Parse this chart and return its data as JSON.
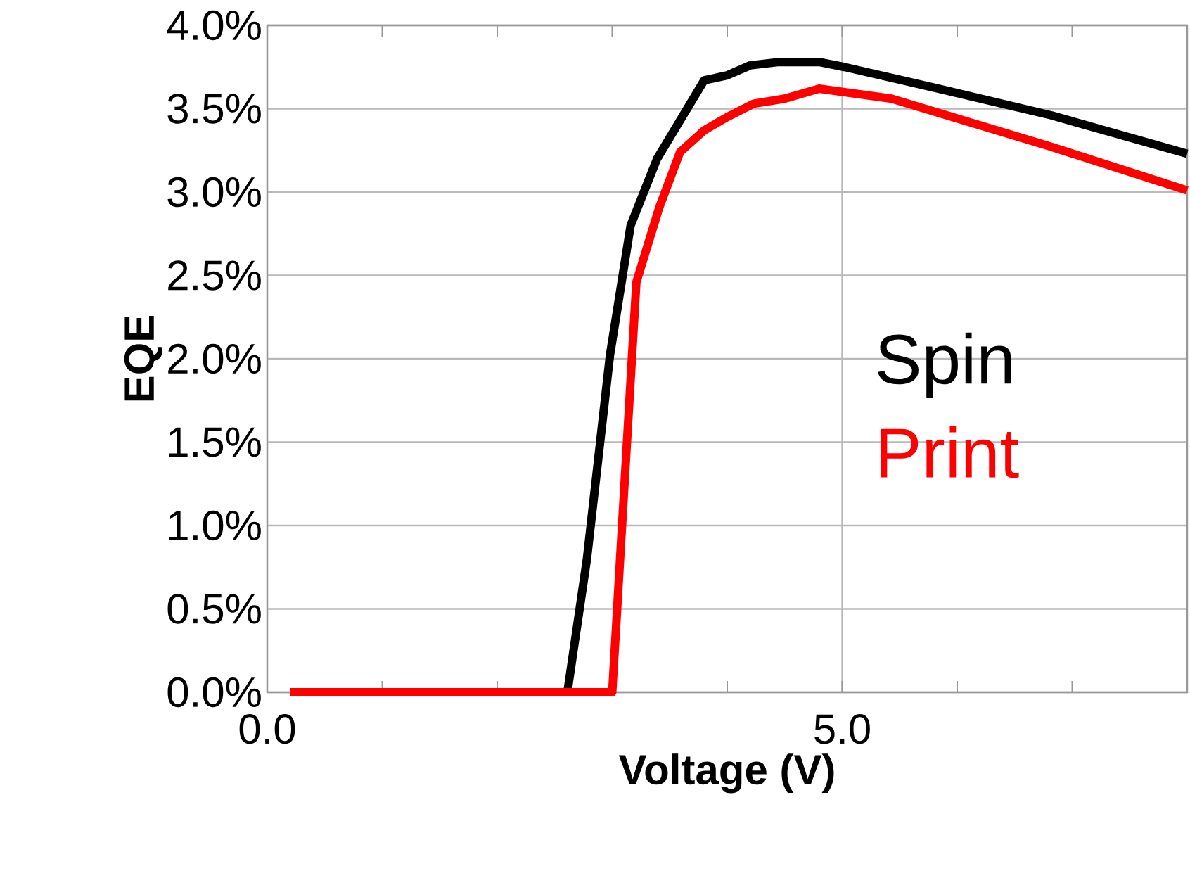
{
  "chart_data": {
    "type": "line",
    "xlabel": "Voltage (V)",
    "ylabel": "EQE",
    "xlim": [
      0,
      8
    ],
    "ylim": [
      0,
      4
    ],
    "xticks": [
      {
        "value": 0,
        "label": "0.0"
      },
      {
        "value": 1,
        "label": null
      },
      {
        "value": 2,
        "label": null
      },
      {
        "value": 3,
        "label": null
      },
      {
        "value": 4,
        "label": null
      },
      {
        "value": 5,
        "label": "5.0"
      },
      {
        "value": 6,
        "label": null
      },
      {
        "value": 7,
        "label": null
      },
      {
        "value": 8,
        "label": null
      }
    ],
    "yticks": [
      {
        "value": 0,
        "label": "0.0%"
      },
      {
        "value": 0.5,
        "label": "0.5%"
      },
      {
        "value": 1,
        "label": "1.0%"
      },
      {
        "value": 1.5,
        "label": "1.5%"
      },
      {
        "value": 2,
        "label": "2.0%"
      },
      {
        "value": 2.5,
        "label": "2.5%"
      },
      {
        "value": 3,
        "label": "3.0%"
      },
      {
        "value": 3.5,
        "label": "3.5%"
      },
      {
        "value": 4,
        "label": "4.0%"
      }
    ],
    "grid": true,
    "marker": "none",
    "line_style": "solid",
    "series": [
      {
        "name": "Spin",
        "color": "#000000",
        "x": [
          0.2,
          2.61,
          2.78,
          2.98,
          3.16,
          3.39,
          3.8,
          4.0,
          4.2,
          4.45,
          4.8,
          5.02,
          5.84,
          6.82,
          8.0
        ],
        "values": [
          0,
          0,
          0.8,
          2.02,
          2.8,
          3.2,
          3.67,
          3.7,
          3.76,
          3.78,
          3.78,
          3.75,
          3.62,
          3.46,
          3.23
        ]
      },
      {
        "name": "Print",
        "color": "#ff0000",
        "x": [
          0.2,
          3.0,
          3.21,
          3.41,
          3.59,
          3.8,
          4.0,
          4.23,
          4.5,
          4.8,
          5.43,
          6.78,
          8.0
        ],
        "values": [
          0,
          0,
          2.46,
          2.91,
          3.24,
          3.37,
          3.45,
          3.53,
          3.56,
          3.62,
          3.56,
          3.28,
          3.01
        ]
      }
    ]
  }
}
